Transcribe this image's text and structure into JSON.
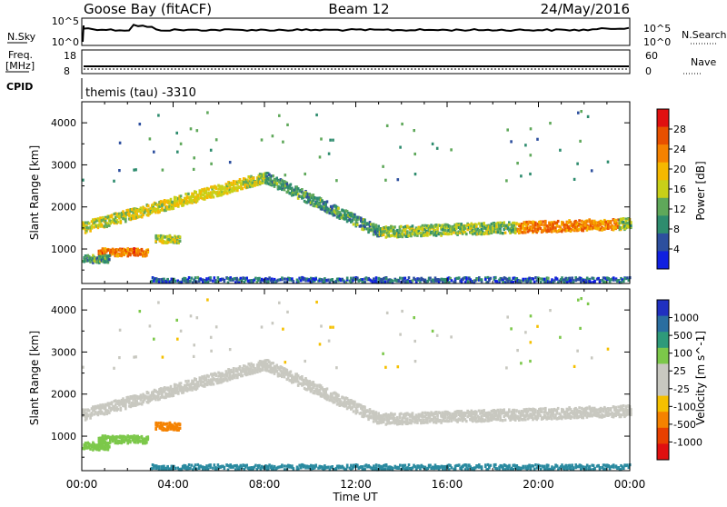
{
  "header": {
    "station": "Goose Bay (fitACF)",
    "beam": "Beam 12",
    "date": "24/May/2016"
  },
  "noise_panel": {
    "left_label": "N.Sky",
    "right_label": "N.Search",
    "left_ticks": [
      "10^5",
      "10^0"
    ],
    "right_ticks": [
      "10^5",
      "10^0"
    ]
  },
  "freq_panel": {
    "left_label_1": "Freq.",
    "left_label_2": "[MHz]",
    "left_ticks": [
      "18",
      "8"
    ],
    "right_label": "Nave",
    "right_ticks": [
      "60",
      "0"
    ]
  },
  "cpid_panel": {
    "label": "CPID",
    "value": "themis (tau) -3310"
  },
  "power_panel": {
    "ylabel": "Slant Range [km]",
    "yticks": [
      "4000",
      "3000",
      "2000",
      "1000"
    ],
    "colorbar_label": "Power [dB]",
    "colorbar_ticks": [
      "28",
      "24",
      "20",
      "16",
      "12",
      "8",
      "4"
    ],
    "colors": [
      "#1020e0",
      "#2d4f9e",
      "#2e8c6e",
      "#5fa85a",
      "#c8d018",
      "#f5b800",
      "#f58200",
      "#e85000",
      "#e01010"
    ]
  },
  "velocity_panel": {
    "ylabel": "Slant Range [km]",
    "yticks": [
      "4000",
      "3000",
      "2000",
      "1000"
    ],
    "colorbar_label": "Velocity [m s^-1]",
    "colorbar_ticks": [
      "1000",
      "500",
      "100",
      "25",
      "-25",
      "-100",
      "-500",
      "-1000"
    ],
    "colors": [
      "#2030c0",
      "#2a6ea0",
      "#2e9a7a",
      "#7cc84a",
      "#c8c8c0",
      "#c8c8c0",
      "#f5c000",
      "#f58200",
      "#e84000",
      "#e01010"
    ]
  },
  "xaxis": {
    "label": "Time UT",
    "ticks": [
      "00:00",
      "04:00",
      "08:00",
      "12:00",
      "16:00",
      "20:00",
      "00:00"
    ]
  },
  "chart_data": {
    "type": "heatmap",
    "title": "Goose Bay (fitACF)",
    "xlabel": "Time UT",
    "ylabel": "Slant Range [km]",
    "xlim": [
      "00:00",
      "24:00"
    ],
    "ylim": [
      180,
      4500
    ],
    "power_scale_db": [
      0,
      32
    ],
    "velocity_scale": [
      -1000,
      1000
    ],
    "scatter_bands": [
      {
        "name": "band_1000_early",
        "start_hr": 0.7,
        "end_hr": 2.9,
        "range_km": 920,
        "power_db": 24,
        "velocity": 80
      },
      {
        "name": "band_700_early",
        "start_hr": 0.0,
        "end_hr": 1.2,
        "range_km": 760,
        "power_db": 10,
        "velocity": 60
      },
      {
        "name": "band_1250_0400",
        "start_hr": 3.2,
        "end_hr": 4.3,
        "range_km": 1230,
        "power_db": 15,
        "velocity": -300
      },
      {
        "name": "main_arc_rising",
        "start_hr": 0.0,
        "end_hr": 8.0,
        "range_km_start": 1500,
        "range_km_end": 2700,
        "power_db": 16,
        "velocity": 0
      },
      {
        "name": "main_arc_falling",
        "start_hr": 8.0,
        "end_hr": 13.0,
        "range_km_start": 2700,
        "range_km_end": 1400,
        "power_db": 10,
        "velocity": 0
      },
      {
        "name": "late_band",
        "start_hr": 13.0,
        "end_hr": 24.0,
        "range_km_start": 1400,
        "range_km_end": 1600,
        "power_db": 14,
        "velocity": 0
      },
      {
        "name": "near_range_clutter",
        "start_hr": 3.0,
        "end_hr": 24.0,
        "range_km": 260,
        "power_db": 6,
        "velocity": 200
      }
    ]
  }
}
